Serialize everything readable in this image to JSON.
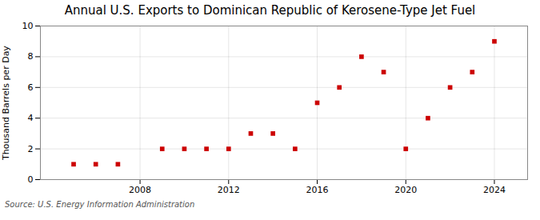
{
  "chart_data": {
    "type": "scatter",
    "title": "Annual U.S. Exports to Dominican Republic of Kerosene-Type Jet Fuel",
    "ylabel": "Thousand Barrels per Day",
    "source": "Source: U.S. Energy Information Administration",
    "x": [
      2005,
      2006,
      2007,
      2009,
      2010,
      2011,
      2012,
      2013,
      2014,
      2015,
      2016,
      2017,
      2018,
      2019,
      2020,
      2021,
      2022,
      2023,
      2024
    ],
    "values": [
      1,
      1,
      1,
      2,
      2,
      2,
      2,
      3,
      3,
      2,
      5,
      6,
      8,
      7,
      2,
      4,
      6,
      7,
      9
    ],
    "color": "#cc0000",
    "marker": "square",
    "xlim": [
      2003.5,
      2025.5
    ],
    "xticks": [
      2008,
      2012,
      2016,
      2020,
      2024
    ],
    "ylim": [
      0,
      10
    ],
    "yticks": [
      0,
      2,
      4,
      6,
      8,
      10
    ],
    "grid": true
  }
}
